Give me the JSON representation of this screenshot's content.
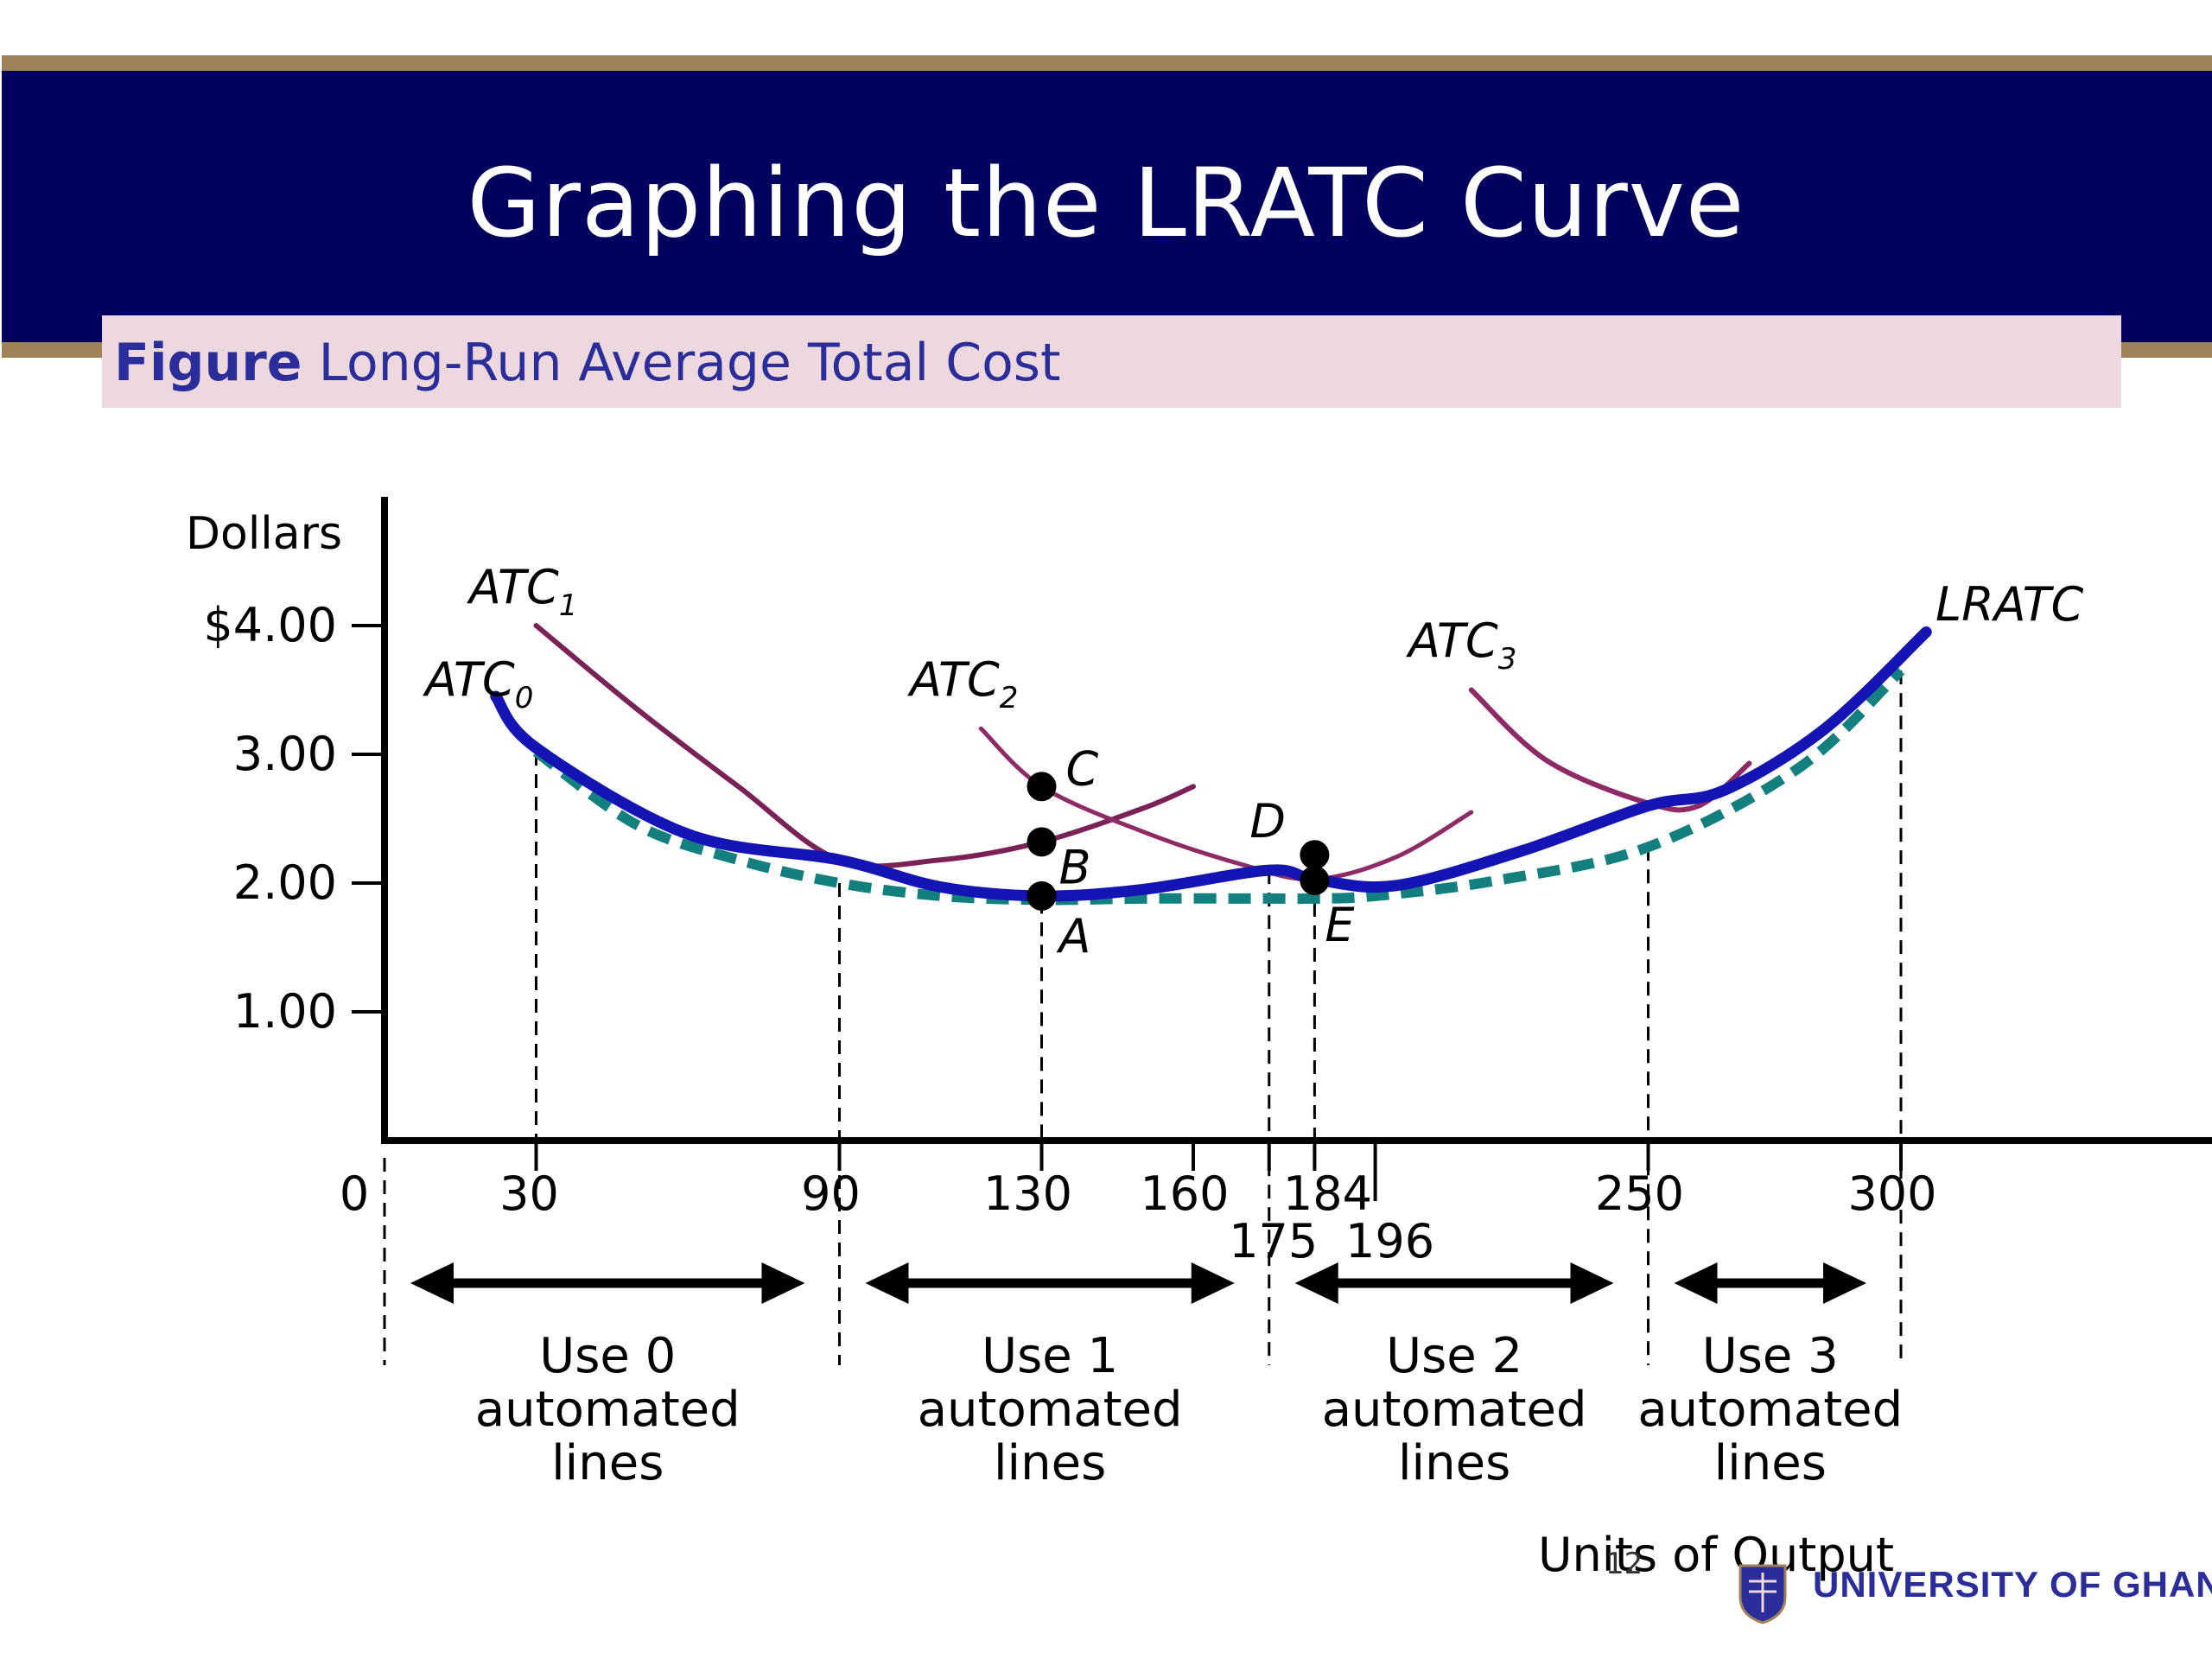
{
  "slide": {
    "title": "Graphing the LRATC Curve",
    "figure_label_bold": "Figure",
    "figure_label_text": " Long-Run Average Total Cost",
    "footer": "UNIVERSITY OF GHANA",
    "page_number": "12"
  },
  "colors": {
    "title_band": "#00005f",
    "band_edge": "#a08258",
    "banner": "#ecd8de",
    "atc_curves": "#7a2258",
    "atc_curves_light": "#8e2a66",
    "lratc_solid": "#1414b4",
    "lratc_dashed": "#147f7f",
    "text": "#000000",
    "label_blue": "#2a2d9a"
  },
  "chart_data": {
    "type": "line",
    "ylabel": "Dollars",
    "xlabel": "Units of Output",
    "ylim": [
      0,
      4.5
    ],
    "y_ticks": [
      {
        "value": 4.0,
        "label": "$4.00"
      },
      {
        "value": 3.0,
        "label": "3.00"
      },
      {
        "value": 2.0,
        "label": "2.00"
      },
      {
        "value": 1.0,
        "label": "1.00"
      }
    ],
    "x_ticks": [
      {
        "value": 0,
        "label": "0"
      },
      {
        "value": 30,
        "label": "30"
      },
      {
        "value": 90,
        "label": "90"
      },
      {
        "value": 130,
        "label": "130"
      },
      {
        "value": 160,
        "label": "160"
      },
      {
        "value": 175,
        "label": "175"
      },
      {
        "value": 184,
        "label": "184"
      },
      {
        "value": 196,
        "label": "196"
      },
      {
        "value": 250,
        "label": "250"
      },
      {
        "value": 300,
        "label": "300"
      }
    ],
    "series": [
      {
        "name": "ATC0",
        "label_main": "ATC",
        "label_sub": "0",
        "points": [
          [
            22,
            3.45
          ],
          [
            30,
            3.05
          ],
          [
            50,
            2.55
          ],
          [
            70,
            2.32
          ],
          [
            90,
            2.18
          ],
          [
            100,
            2.08
          ],
          [
            115,
            1.97
          ],
          [
            130,
            1.9
          ]
        ]
      },
      {
        "name": "ATC1",
        "label_main": "ATC",
        "label_sub": "1",
        "points": [
          [
            30,
            4.0
          ],
          [
            50,
            3.35
          ],
          [
            70,
            2.75
          ],
          [
            90,
            2.18
          ],
          [
            110,
            2.18
          ],
          [
            130,
            2.32
          ],
          [
            150,
            2.58
          ],
          [
            160,
            2.75
          ]
        ]
      },
      {
        "name": "ATC2",
        "label_main": "ATC",
        "label_sub": "2",
        "points": [
          [
            118,
            3.2
          ],
          [
            130,
            2.75
          ],
          [
            150,
            2.4
          ],
          [
            170,
            2.14
          ],
          [
            184,
            2.03
          ],
          [
            200,
            2.2
          ],
          [
            215,
            2.55
          ]
        ]
      },
      {
        "name": "ATC3",
        "label_main": "ATC",
        "label_sub": "3",
        "points": [
          [
            215,
            3.5
          ],
          [
            230,
            2.95
          ],
          [
            250,
            2.62
          ],
          [
            260,
            2.6
          ],
          [
            270,
            2.93
          ]
        ]
      },
      {
        "name": "LRATC",
        "label_main": "LRATC",
        "label_sub": "",
        "points": [
          [
            22,
            3.45
          ],
          [
            30,
            3.05
          ],
          [
            60,
            2.38
          ],
          [
            90,
            2.18
          ],
          [
            110,
            1.97
          ],
          [
            130,
            1.9
          ],
          [
            150,
            1.95
          ],
          [
            175,
            2.1
          ],
          [
            184,
            2.03
          ],
          [
            200,
            1.98
          ],
          [
            225,
            2.25
          ],
          [
            250,
            2.6
          ],
          [
            265,
            2.72
          ],
          [
            285,
            3.2
          ],
          [
            305,
            3.95
          ]
        ]
      },
      {
        "name": "LRATC-envelope",
        "label_main": "",
        "label_sub": "",
        "points": [
          [
            30,
            3.02
          ],
          [
            50,
            2.45
          ],
          [
            70,
            2.18
          ],
          [
            90,
            2.0
          ],
          [
            110,
            1.9
          ],
          [
            130,
            1.87
          ],
          [
            150,
            1.88
          ],
          [
            175,
            1.88
          ],
          [
            184,
            1.88
          ],
          [
            196,
            1.9
          ],
          [
            220,
            2.02
          ],
          [
            250,
            2.28
          ],
          [
            280,
            2.9
          ],
          [
            300,
            3.65
          ]
        ]
      }
    ],
    "points_marked": [
      {
        "label": "A",
        "x": 130,
        "y": 1.9
      },
      {
        "label": "B",
        "x": 130,
        "y": 2.32
      },
      {
        "label": "C",
        "x": 130,
        "y": 2.75
      },
      {
        "label": "D",
        "x": 184,
        "y": 2.22
      },
      {
        "label": "E",
        "x": 184,
        "y": 2.02
      }
    ],
    "vertical_guides": [
      30,
      90,
      130,
      175,
      184,
      250,
      300
    ],
    "ranges": [
      {
        "from": 0,
        "to": 90,
        "text": [
          "Use 0",
          "automated",
          "lines"
        ]
      },
      {
        "from": 90,
        "to": 175,
        "text": [
          "Use 1",
          "automated",
          "lines"
        ]
      },
      {
        "from": 175,
        "to": 250,
        "text": [
          "Use 2",
          "automated",
          "lines"
        ]
      },
      {
        "from": 250,
        "to": 300,
        "text": [
          "Use 3",
          "automated",
          "lines"
        ]
      }
    ]
  }
}
